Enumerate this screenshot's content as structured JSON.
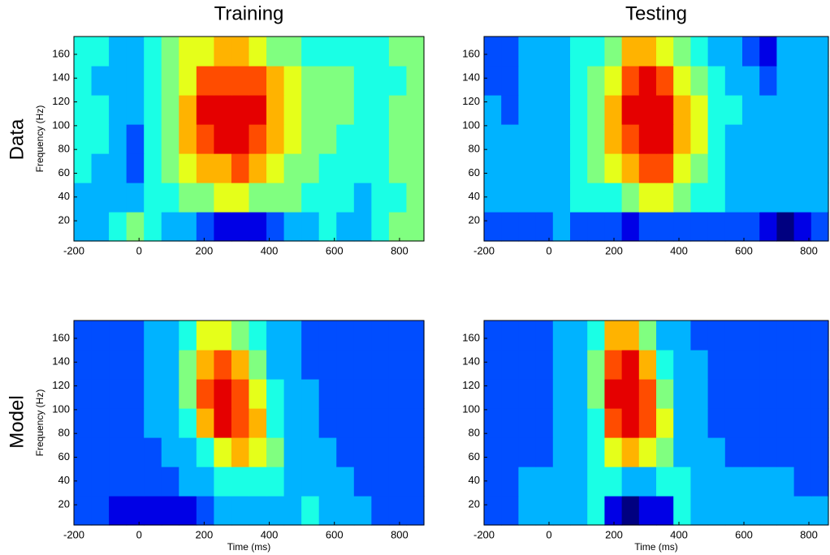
{
  "row_labels": [
    "Data",
    "Model"
  ],
  "chart_data": [
    {
      "type": "heatmap",
      "title": "Training",
      "ylabel": "Frequency (Hz)",
      "xlim": [
        -200,
        875
      ],
      "ylim": [
        3,
        175
      ],
      "zlim": [
        0,
        10
      ],
      "xticks": [
        -200,
        0,
        200,
        400,
        600,
        800
      ],
      "yticks": [
        20,
        40,
        60,
        80,
        100,
        120,
        140,
        160
      ],
      "z": [
        [
          3,
          3,
          4,
          5,
          4,
          3,
          3,
          2,
          1,
          1,
          1,
          2,
          3,
          3,
          4,
          3,
          3,
          4,
          5,
          5
        ],
        [
          3,
          3,
          3,
          3,
          4,
          4,
          5,
          5,
          6,
          6,
          5,
          5,
          5,
          4,
          4,
          4,
          3,
          4,
          4,
          5
        ],
        [
          4,
          3,
          3,
          2,
          4,
          5,
          6,
          7,
          7,
          8,
          7,
          6,
          5,
          5,
          4,
          4,
          4,
          4,
          5,
          5
        ],
        [
          4,
          4,
          3,
          2,
          4,
          5,
          7,
          8,
          9,
          9,
          8,
          7,
          6,
          5,
          5,
          4,
          4,
          4,
          5,
          5
        ],
        [
          4,
          4,
          3,
          3,
          4,
          5,
          7,
          9,
          9,
          9,
          9,
          7,
          6,
          5,
          5,
          5,
          4,
          4,
          5,
          5
        ],
        [
          4,
          3,
          3,
          3,
          4,
          5,
          6,
          8,
          8,
          8,
          8,
          7,
          6,
          5,
          5,
          5,
          4,
          4,
          4,
          5
        ],
        [
          4,
          4,
          3,
          3,
          4,
          5,
          6,
          6,
          7,
          7,
          6,
          5,
          5,
          4,
          4,
          4,
          4,
          4,
          5,
          5
        ]
      ]
    },
    {
      "type": "heatmap",
      "title": "Testing",
      "xlim": [
        -200,
        860
      ],
      "ylim": [
        3,
        175
      ],
      "zlim": [
        0,
        10
      ],
      "xticks": [
        -200,
        0,
        200,
        400,
        600,
        800
      ],
      "yticks": [
        20,
        40,
        60,
        80,
        100,
        120,
        140,
        160
      ],
      "z": [
        [
          2,
          2,
          2,
          2,
          3,
          2,
          2,
          2,
          1,
          2,
          2,
          2,
          2,
          2,
          2,
          2,
          1,
          0,
          1,
          2
        ],
        [
          3,
          3,
          3,
          3,
          3,
          4,
          4,
          4,
          5,
          6,
          6,
          5,
          4,
          4,
          3,
          3,
          3,
          3,
          3,
          3
        ],
        [
          3,
          3,
          3,
          3,
          3,
          4,
          5,
          6,
          7,
          8,
          8,
          6,
          5,
          4,
          3,
          3,
          3,
          3,
          3,
          3
        ],
        [
          3,
          3,
          3,
          3,
          3,
          4,
          5,
          7,
          8,
          9,
          9,
          7,
          6,
          4,
          3,
          3,
          3,
          3,
          3,
          3
        ],
        [
          3,
          2,
          3,
          3,
          3,
          4,
          5,
          7,
          9,
          9,
          9,
          7,
          6,
          4,
          4,
          3,
          3,
          3,
          3,
          3
        ],
        [
          2,
          2,
          3,
          3,
          3,
          4,
          5,
          6,
          8,
          9,
          8,
          6,
          5,
          4,
          3,
          3,
          2,
          3,
          3,
          3
        ],
        [
          2,
          2,
          3,
          3,
          3,
          4,
          4,
          5,
          7,
          7,
          6,
          5,
          4,
          3,
          3,
          2,
          1,
          3,
          3,
          3
        ]
      ]
    },
    {
      "type": "heatmap",
      "ylabel": "Frequency (Hz)",
      "xlabel": "Time (ms)",
      "xlim": [
        -200,
        875
      ],
      "ylim": [
        3,
        175
      ],
      "zlim": [
        0,
        10
      ],
      "xticks": [
        -200,
        0,
        200,
        400,
        600,
        800
      ],
      "yticks": [
        20,
        40,
        60,
        80,
        100,
        120,
        140,
        160
      ],
      "z": [
        [
          2,
          2,
          1,
          1,
          1,
          1,
          1,
          2,
          3,
          3,
          3,
          3,
          3,
          4,
          3,
          3,
          3,
          2,
          2,
          2
        ],
        [
          2,
          2,
          2,
          2,
          2,
          2,
          3,
          3,
          4,
          4,
          4,
          4,
          3,
          3,
          3,
          3,
          2,
          2,
          2,
          2
        ],
        [
          2,
          2,
          2,
          2,
          2,
          3,
          3,
          4,
          6,
          7,
          6,
          5,
          3,
          3,
          3,
          2,
          2,
          2,
          2,
          2
        ],
        [
          2,
          2,
          2,
          2,
          3,
          3,
          4,
          7,
          9,
          8,
          7,
          4,
          3,
          3,
          2,
          2,
          2,
          2,
          2,
          2
        ],
        [
          2,
          2,
          2,
          2,
          3,
          3,
          5,
          8,
          9,
          8,
          6,
          4,
          3,
          3,
          2,
          2,
          2,
          2,
          2,
          2
        ],
        [
          2,
          2,
          2,
          2,
          3,
          3,
          5,
          7,
          8,
          7,
          5,
          3,
          3,
          2,
          2,
          2,
          2,
          2,
          2,
          2
        ],
        [
          2,
          2,
          2,
          2,
          3,
          3,
          4,
          6,
          6,
          5,
          4,
          3,
          3,
          2,
          2,
          2,
          2,
          2,
          2,
          2
        ]
      ]
    },
    {
      "type": "heatmap",
      "xlabel": "Time (ms)",
      "xlim": [
        -200,
        860
      ],
      "ylim": [
        3,
        175
      ],
      "zlim": [
        0,
        10
      ],
      "xticks": [
        -200,
        0,
        200,
        400,
        600,
        800
      ],
      "yticks": [
        20,
        40,
        60,
        80,
        100,
        120,
        140,
        160
      ],
      "z": [
        [
          2,
          2,
          3,
          3,
          3,
          3,
          4,
          1,
          0,
          1,
          1,
          4,
          3,
          3,
          3,
          3,
          3,
          3,
          3,
          3
        ],
        [
          2,
          2,
          3,
          3,
          3,
          3,
          4,
          4,
          3,
          3,
          4,
          4,
          3,
          3,
          3,
          3,
          3,
          3,
          2,
          2
        ],
        [
          2,
          2,
          2,
          2,
          3,
          3,
          4,
          6,
          7,
          6,
          5,
          3,
          3,
          3,
          2,
          2,
          2,
          2,
          2,
          2
        ],
        [
          2,
          2,
          2,
          2,
          3,
          3,
          4,
          8,
          9,
          8,
          6,
          3,
          3,
          2,
          2,
          2,
          2,
          2,
          2,
          2
        ],
        [
          2,
          2,
          2,
          2,
          3,
          3,
          5,
          9,
          9,
          8,
          5,
          3,
          3,
          2,
          2,
          2,
          2,
          2,
          2,
          2
        ],
        [
          2,
          2,
          2,
          2,
          3,
          3,
          5,
          8,
          9,
          7,
          4,
          3,
          3,
          2,
          2,
          2,
          2,
          2,
          2,
          2
        ],
        [
          2,
          2,
          2,
          2,
          3,
          3,
          4,
          7,
          7,
          5,
          3,
          3,
          2,
          2,
          2,
          2,
          2,
          2,
          2,
          2
        ]
      ]
    }
  ]
}
